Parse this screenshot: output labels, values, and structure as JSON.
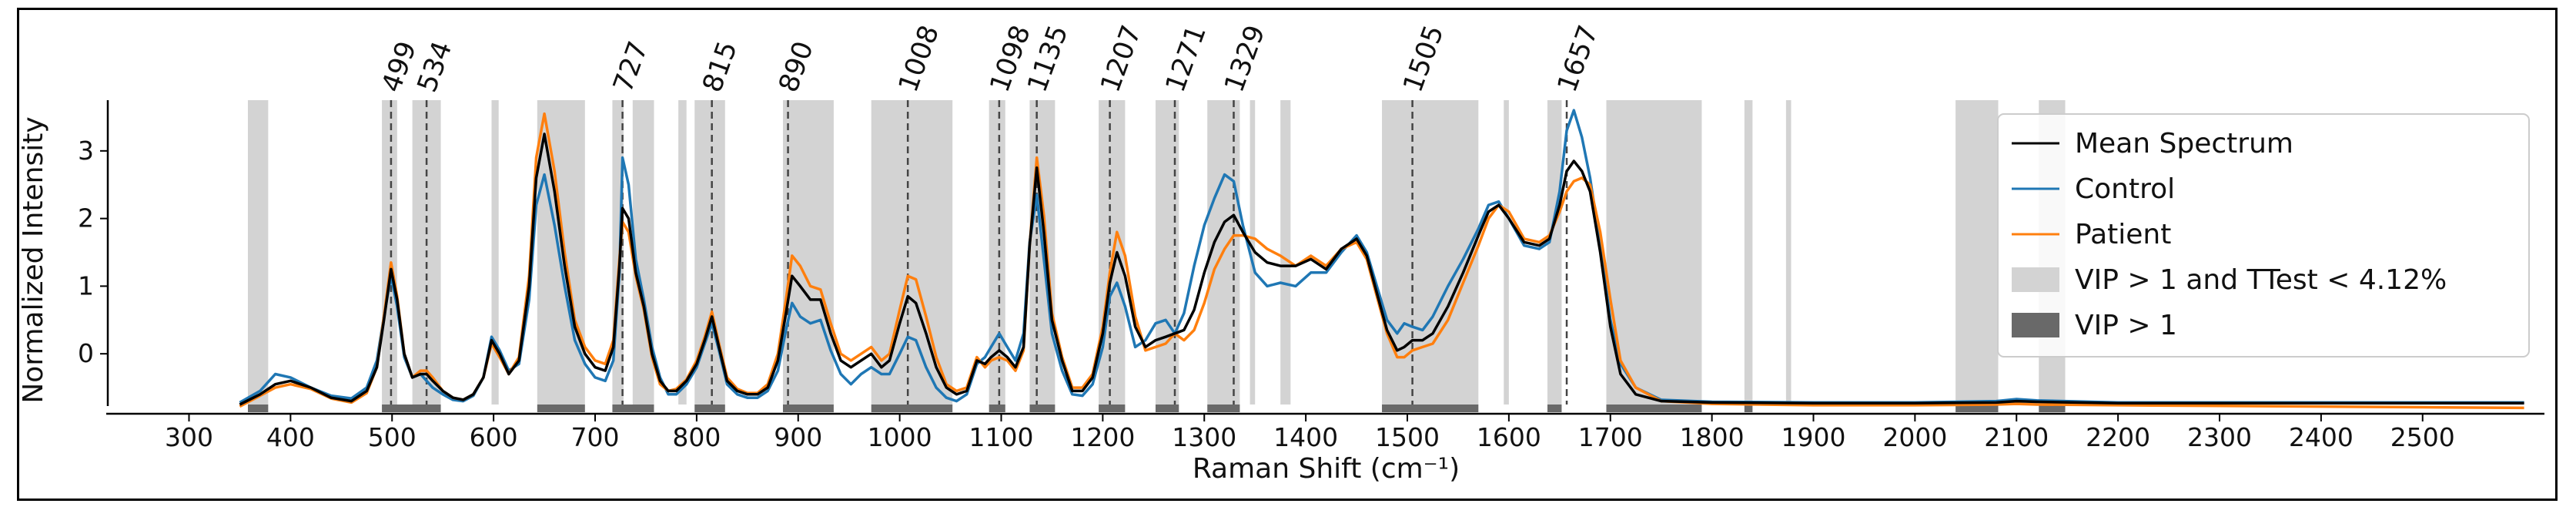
{
  "chart_data": {
    "type": "line",
    "xlabel": "Raman Shift (cm⁻¹)",
    "ylabel": "Normalized Intensity",
    "xlim": [
      220,
      2620
    ],
    "ylim": [
      -0.75,
      3.75
    ],
    "x_ticks": [
      300,
      400,
      500,
      600,
      700,
      800,
      900,
      1000,
      1100,
      1200,
      1300,
      1400,
      1500,
      1600,
      1700,
      1800,
      1900,
      2000,
      2100,
      2200,
      2300,
      2400,
      2500
    ],
    "y_ticks": [
      0,
      1,
      2,
      3
    ],
    "grid": false,
    "legend_position": "upper-right",
    "peak_labels": [
      "499",
      "534",
      "727",
      "815",
      "890",
      "1008",
      "1098",
      "1135",
      "1207",
      "1271",
      "1329",
      "1505",
      "1657"
    ],
    "peak_positions": [
      499,
      534,
      727,
      815,
      890,
      1008,
      1098,
      1135,
      1207,
      1271,
      1329,
      1505,
      1657
    ],
    "legend": [
      {
        "label": "Mean Spectrum",
        "kind": "line",
        "color": "#000000"
      },
      {
        "label": "Control",
        "kind": "line",
        "color": "#1f77b4"
      },
      {
        "label": "Patient",
        "kind": "line",
        "color": "#ff7f0e"
      },
      {
        "label": "VIP > 1 and TTest < 4.12%",
        "kind": "patch",
        "color": "#d3d3d3"
      },
      {
        "label": "VIP > 1",
        "kind": "patch",
        "color": "#696969"
      }
    ],
    "vip_ttest_regions": [
      [
        358,
        378
      ],
      [
        490,
        505
      ],
      [
        520,
        548
      ],
      [
        598,
        605
      ],
      [
        643,
        690
      ],
      [
        717,
        728
      ],
      [
        737,
        758
      ],
      [
        782,
        790
      ],
      [
        798,
        828
      ],
      [
        885,
        935
      ],
      [
        972,
        1052
      ],
      [
        1088,
        1104
      ],
      [
        1128,
        1153
      ],
      [
        1196,
        1222
      ],
      [
        1252,
        1275
      ],
      [
        1303,
        1335
      ],
      [
        1345,
        1350
      ],
      [
        1375,
        1385
      ],
      [
        1475,
        1570
      ],
      [
        1595,
        1600
      ],
      [
        1638,
        1652
      ],
      [
        1696,
        1790
      ],
      [
        1832,
        1840
      ],
      [
        1873,
        1878
      ],
      [
        2040,
        2082
      ],
      [
        2122,
        2148
      ]
    ],
    "vip_only_regions": [
      [
        358,
        378
      ],
      [
        490,
        548
      ],
      [
        643,
        690
      ],
      [
        717,
        758
      ],
      [
        798,
        828
      ],
      [
        885,
        935
      ],
      [
        972,
        1052
      ],
      [
        1088,
        1104
      ],
      [
        1128,
        1153
      ],
      [
        1196,
        1222
      ],
      [
        1252,
        1275
      ],
      [
        1303,
        1335
      ],
      [
        1475,
        1570
      ],
      [
        1638,
        1652
      ],
      [
        1696,
        1790
      ],
      [
        1832,
        1840
      ],
      [
        2040,
        2082
      ],
      [
        2122,
        2148
      ]
    ],
    "x": [
      350,
      370,
      385,
      400,
      420,
      440,
      460,
      475,
      485,
      492,
      499,
      505,
      512,
      520,
      528,
      534,
      540,
      550,
      560,
      570,
      580,
      590,
      598,
      606,
      615,
      625,
      635,
      642,
      650,
      660,
      670,
      680,
      690,
      700,
      710,
      718,
      724,
      727,
      733,
      740,
      748,
      756,
      764,
      772,
      780,
      790,
      800,
      808,
      815,
      822,
      830,
      840,
      850,
      860,
      870,
      880,
      888,
      894,
      902,
      912,
      922,
      932,
      942,
      952,
      962,
      972,
      982,
      990,
      1000,
      1008,
      1016,
      1026,
      1036,
      1046,
      1056,
      1066,
      1076,
      1084,
      1090,
      1098,
      1106,
      1114,
      1122,
      1128,
      1135,
      1142,
      1150,
      1160,
      1170,
      1180,
      1190,
      1200,
      1207,
      1214,
      1222,
      1232,
      1242,
      1252,
      1262,
      1271,
      1280,
      1290,
      1300,
      1310,
      1320,
      1329,
      1338,
      1350,
      1362,
      1375,
      1390,
      1405,
      1420,
      1435,
      1450,
      1460,
      1470,
      1480,
      1490,
      1497,
      1505,
      1515,
      1525,
      1540,
      1555,
      1570,
      1580,
      1590,
      1600,
      1615,
      1630,
      1640,
      1650,
      1657,
      1664,
      1672,
      1680,
      1690,
      1700,
      1710,
      1725,
      1750,
      1800,
      1900,
      2000,
      2080,
      2100,
      2120,
      2200,
      2300,
      2400,
      2500,
      2600
    ],
    "series": [
      {
        "name": "Mean Spectrum",
        "color": "#000000",
        "values": [
          -0.75,
          -0.6,
          -0.45,
          -0.4,
          -0.5,
          -0.65,
          -0.7,
          -0.55,
          -0.2,
          0.5,
          1.25,
          0.8,
          0.0,
          -0.35,
          -0.3,
          -0.3,
          -0.4,
          -0.55,
          -0.65,
          -0.68,
          -0.6,
          -0.35,
          0.2,
          0.0,
          -0.3,
          -0.1,
          1.0,
          2.6,
          3.25,
          2.4,
          1.3,
          0.4,
          0.0,
          -0.2,
          -0.25,
          0.1,
          1.3,
          2.15,
          2.0,
          1.2,
          0.7,
          0.0,
          -0.4,
          -0.55,
          -0.55,
          -0.4,
          -0.15,
          0.2,
          0.55,
          0.1,
          -0.4,
          -0.55,
          -0.6,
          -0.6,
          -0.5,
          -0.1,
          0.6,
          1.15,
          1.0,
          0.8,
          0.8,
          0.3,
          -0.1,
          -0.2,
          -0.1,
          0.0,
          -0.2,
          -0.1,
          0.45,
          0.85,
          0.75,
          0.3,
          -0.2,
          -0.5,
          -0.6,
          -0.55,
          -0.1,
          -0.15,
          -0.05,
          0.05,
          -0.05,
          -0.2,
          0.1,
          1.6,
          2.75,
          1.8,
          0.5,
          -0.1,
          -0.55,
          -0.55,
          -0.35,
          0.3,
          1.05,
          1.5,
          1.15,
          0.4,
          0.1,
          0.2,
          0.25,
          0.3,
          0.35,
          0.65,
          1.2,
          1.65,
          1.95,
          2.05,
          1.8,
          1.5,
          1.35,
          1.3,
          1.3,
          1.4,
          1.25,
          1.55,
          1.7,
          1.45,
          0.9,
          0.35,
          0.05,
          0.1,
          0.2,
          0.2,
          0.3,
          0.7,
          1.2,
          1.75,
          2.1,
          2.2,
          2.0,
          1.65,
          1.6,
          1.7,
          2.2,
          2.7,
          2.85,
          2.7,
          2.4,
          1.5,
          0.4,
          -0.3,
          -0.6,
          -0.7,
          -0.72,
          -0.73,
          -0.73,
          -0.72,
          -0.7,
          -0.71,
          -0.73,
          -0.73,
          -0.73,
          -0.73,
          -0.73
        ]
      },
      {
        "name": "Control",
        "color": "#1f77b4",
        "values": [
          -0.72,
          -0.55,
          -0.3,
          -0.35,
          -0.5,
          -0.62,
          -0.66,
          -0.5,
          -0.1,
          0.55,
          1.15,
          0.7,
          -0.05,
          -0.35,
          -0.3,
          -0.4,
          -0.5,
          -0.6,
          -0.68,
          -0.7,
          -0.62,
          -0.35,
          0.25,
          0.05,
          -0.25,
          -0.15,
          0.8,
          2.2,
          2.65,
          1.9,
          1.0,
          0.2,
          -0.15,
          -0.35,
          -0.4,
          -0.1,
          1.2,
          2.9,
          2.5,
          1.4,
          0.8,
          0.1,
          -0.35,
          -0.6,
          -0.6,
          -0.45,
          -0.2,
          0.15,
          0.45,
          0.05,
          -0.45,
          -0.6,
          -0.65,
          -0.65,
          -0.55,
          -0.25,
          0.35,
          0.75,
          0.55,
          0.45,
          0.5,
          0.05,
          -0.3,
          -0.45,
          -0.3,
          -0.2,
          -0.3,
          -0.3,
          0.0,
          0.25,
          0.2,
          -0.2,
          -0.5,
          -0.65,
          -0.7,
          -0.6,
          -0.15,
          -0.05,
          0.1,
          0.3,
          0.1,
          -0.1,
          0.3,
          1.65,
          2.35,
          1.4,
          0.3,
          -0.25,
          -0.6,
          -0.62,
          -0.45,
          0.1,
          0.85,
          1.05,
          0.7,
          0.1,
          0.2,
          0.45,
          0.5,
          0.3,
          0.6,
          1.3,
          1.9,
          2.3,
          2.65,
          2.55,
          1.9,
          1.2,
          1.0,
          1.05,
          1.0,
          1.2,
          1.2,
          1.5,
          1.75,
          1.5,
          1.0,
          0.5,
          0.3,
          0.45,
          0.4,
          0.35,
          0.55,
          1.0,
          1.4,
          1.85,
          2.2,
          2.25,
          2.0,
          1.6,
          1.55,
          1.65,
          2.4,
          3.3,
          3.6,
          3.2,
          2.6,
          1.6,
          0.5,
          -0.15,
          -0.5,
          -0.68,
          -0.71,
          -0.72,
          -0.72,
          -0.7,
          -0.67,
          -0.69,
          -0.72,
          -0.72,
          -0.72,
          -0.72,
          -0.72
        ]
      },
      {
        "name": "Patient",
        "color": "#ff7f0e",
        "values": [
          -0.78,
          -0.62,
          -0.5,
          -0.45,
          -0.52,
          -0.66,
          -0.72,
          -0.58,
          -0.2,
          0.55,
          1.35,
          0.85,
          0.0,
          -0.35,
          -0.25,
          -0.25,
          -0.35,
          -0.55,
          -0.65,
          -0.68,
          -0.6,
          -0.35,
          0.15,
          -0.05,
          -0.3,
          -0.05,
          1.15,
          2.9,
          3.55,
          2.7,
          1.5,
          0.5,
          0.1,
          -0.1,
          -0.15,
          0.2,
          1.4,
          1.95,
          1.8,
          1.15,
          0.65,
          -0.05,
          -0.45,
          -0.55,
          -0.52,
          -0.38,
          -0.1,
          0.25,
          0.62,
          0.15,
          -0.35,
          -0.52,
          -0.58,
          -0.58,
          -0.45,
          0.0,
          0.8,
          1.45,
          1.3,
          1.0,
          0.95,
          0.45,
          0.0,
          -0.1,
          0.0,
          0.1,
          -0.1,
          0.0,
          0.65,
          1.15,
          1.1,
          0.55,
          -0.05,
          -0.45,
          -0.55,
          -0.5,
          -0.05,
          -0.2,
          -0.1,
          -0.05,
          -0.1,
          -0.25,
          0.05,
          1.6,
          2.9,
          2.05,
          0.6,
          -0.05,
          -0.5,
          -0.5,
          -0.3,
          0.4,
          1.2,
          1.8,
          1.45,
          0.55,
          0.05,
          0.1,
          0.15,
          0.3,
          0.2,
          0.35,
          0.75,
          1.25,
          1.55,
          1.75,
          1.75,
          1.7,
          1.55,
          1.45,
          1.3,
          1.45,
          1.3,
          1.55,
          1.65,
          1.4,
          0.85,
          0.3,
          -0.05,
          -0.05,
          0.05,
          0.1,
          0.15,
          0.5,
          1.05,
          1.6,
          2.0,
          2.2,
          2.1,
          1.7,
          1.65,
          1.75,
          2.1,
          2.4,
          2.55,
          2.6,
          2.5,
          1.8,
          0.8,
          -0.1,
          -0.5,
          -0.7,
          -0.74,
          -0.76,
          -0.76,
          -0.75,
          -0.74,
          -0.75,
          -0.76,
          -0.77,
          -0.78,
          -0.79,
          -0.8
        ]
      }
    ]
  }
}
